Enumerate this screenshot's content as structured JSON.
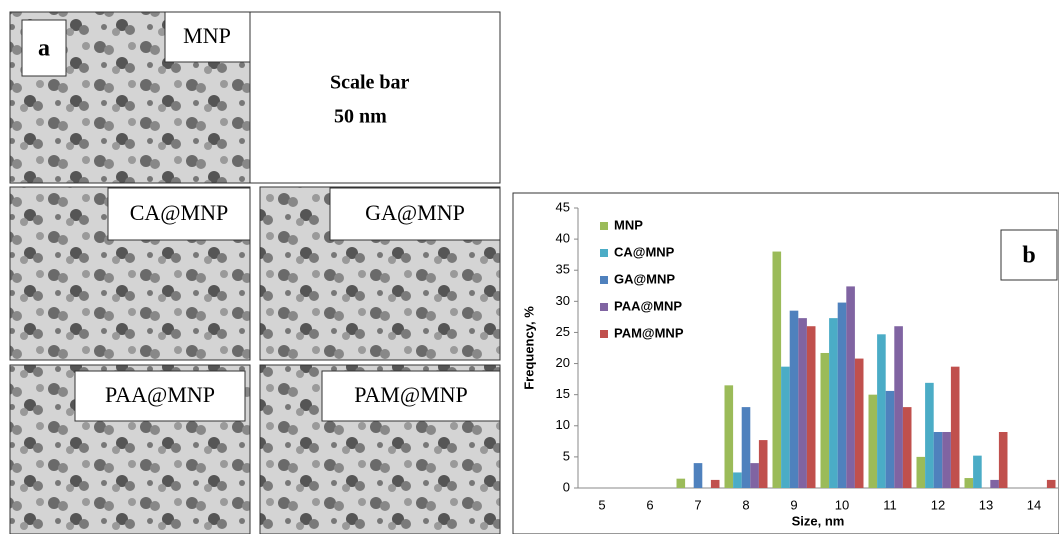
{
  "panel_a": {
    "label": "a",
    "images": [
      "MNP",
      "CA@MNP",
      "GA@MNP",
      "PAA@MNP",
      "PAM@MNP"
    ],
    "scale_note": [
      "Scale bar",
      "50 nm"
    ]
  },
  "chart_data": {
    "type": "bar",
    "panel_label": "b",
    "x_label": "Size, nm",
    "y_label": "Frequency, %",
    "categories": [
      "5",
      "6",
      "7",
      "8",
      "9",
      "10",
      "11",
      "12",
      "13",
      "14"
    ],
    "series": [
      {
        "name": "MNP",
        "color": "#9bbb59",
        "values": [
          0,
          0,
          1.5,
          16.5,
          38,
          21.7,
          15,
          5,
          1.6,
          0
        ]
      },
      {
        "name": "CA@MNP",
        "color": "#4bacc6",
        "values": [
          0,
          0,
          0,
          2.5,
          19.5,
          27.3,
          24.7,
          16.9,
          5.2,
          0
        ]
      },
      {
        "name": "GA@MNP",
        "color": "#4f81bd",
        "values": [
          0,
          0,
          4,
          13,
          28.5,
          29.8,
          15.6,
          9,
          0,
          0
        ]
      },
      {
        "name": "PAA@MNP",
        "color": "#8064a2",
        "values": [
          0,
          0,
          0,
          4,
          27.3,
          32.4,
          26,
          9,
          1.3,
          0
        ]
      },
      {
        "name": "PAM@MNP",
        "color": "#c0504d",
        "values": [
          0,
          0,
          1.3,
          7.7,
          26,
          20.8,
          13,
          19.5,
          9,
          1.3
        ]
      }
    ],
    "ylim": [
      0,
      45
    ],
    "yticks": [
      0,
      5,
      10,
      15,
      20,
      25,
      30,
      35,
      40,
      45
    ],
    "grid": false,
    "legend": "top-left"
  }
}
